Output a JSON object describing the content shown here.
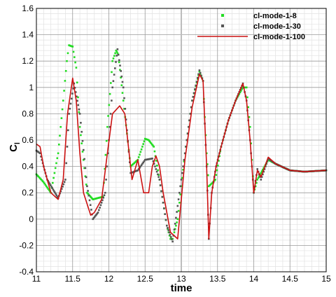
{
  "chart_data": {
    "type": "line",
    "title": "",
    "xlabel": "time",
    "ylabel": "C",
    "ylabel_subscript": "l",
    "xlim": [
      11,
      15
    ],
    "ylim": [
      -0.4,
      1.6
    ],
    "x_ticks": [
      11,
      11.5,
      12,
      12.5,
      13,
      13.5,
      14,
      14.5,
      15
    ],
    "x_tick_labels": [
      "11",
      "11.5",
      "12",
      "12.5",
      "13",
      "13.5",
      "14",
      "14.5",
      "15"
    ],
    "y_ticks": [
      -0.4,
      -0.2,
      0,
      0.2,
      0.4,
      0.6,
      0.8,
      1,
      1.2,
      1.4,
      1.6
    ],
    "y_tick_labels": [
      "-0.4",
      "-0.2",
      "0",
      "0.2",
      "0.4",
      "0.6",
      "0.8",
      "1",
      "1.2",
      "1.4",
      "1.6"
    ],
    "grid": true,
    "legend_position": "top-right",
    "series": [
      {
        "name": "cl-mode-1-8",
        "style": "markers",
        "color": "#22dd22",
        "x": [
          11.0,
          11.1,
          11.2,
          11.3,
          11.37,
          11.42,
          11.45,
          11.5,
          11.55,
          11.6,
          11.7,
          11.78,
          11.85,
          11.92,
          11.98,
          12.05,
          12.1,
          12.13,
          12.2,
          12.3,
          12.4,
          12.5,
          12.55,
          12.62,
          12.7,
          12.8,
          12.85,
          12.88,
          12.95,
          13.05,
          13.15,
          13.25,
          13.3,
          13.35,
          13.38,
          13.42,
          13.47,
          13.55,
          13.65,
          13.75,
          13.85,
          13.9,
          13.95,
          14.0,
          14.05,
          14.1,
          14.2,
          14.3,
          14.5,
          14.7,
          15.0
        ],
        "y": [
          0.34,
          0.28,
          0.2,
          0.5,
          0.9,
          1.2,
          1.32,
          1.31,
          1.15,
          0.7,
          0.2,
          0.15,
          0.16,
          0.17,
          0.7,
          1.2,
          1.28,
          1.25,
          0.9,
          0.4,
          0.45,
          0.61,
          0.6,
          0.55,
          0.3,
          -0.05,
          -0.15,
          -0.15,
          0.0,
          0.5,
          0.9,
          1.12,
          1.05,
          0.5,
          0.25,
          0.27,
          0.3,
          0.55,
          0.75,
          0.9,
          1.0,
          1.0,
          0.7,
          0.2,
          0.3,
          0.35,
          0.45,
          0.42,
          0.37,
          0.36,
          0.37
        ]
      },
      {
        "name": "cl-mode-1-30",
        "style": "markers",
        "color": "#555555",
        "x": [
          11.0,
          11.05,
          11.15,
          11.3,
          11.4,
          11.45,
          11.52,
          11.6,
          11.7,
          11.78,
          11.85,
          11.95,
          12.05,
          12.12,
          12.2,
          12.3,
          12.4,
          12.5,
          12.6,
          12.7,
          12.8,
          12.88,
          12.95,
          13.05,
          13.15,
          13.25,
          13.3,
          13.35,
          13.38,
          13.42,
          13.48,
          13.55,
          13.65,
          13.75,
          13.85,
          13.9,
          13.95,
          14.0,
          14.05,
          14.1,
          14.2,
          14.3,
          14.5,
          14.7,
          15.0
        ],
        "y": [
          0.52,
          0.5,
          0.3,
          0.16,
          0.3,
          0.8,
          1.03,
          0.8,
          0.25,
          0.0,
          0.05,
          0.2,
          1.0,
          1.29,
          1.0,
          0.35,
          0.37,
          0.45,
          0.46,
          0.3,
          -0.05,
          -0.17,
          0.1,
          0.5,
          0.9,
          1.13,
          1.05,
          0.4,
          -0.15,
          0.2,
          0.4,
          0.55,
          0.75,
          0.9,
          1.03,
          0.9,
          0.6,
          0.2,
          0.38,
          0.3,
          0.46,
          0.42,
          0.37,
          0.36,
          0.37
        ]
      },
      {
        "name": "cl-mode-1-100",
        "style": "line",
        "color": "#cc1111",
        "x": [
          11.0,
          11.05,
          11.1,
          11.2,
          11.3,
          11.37,
          11.43,
          11.5,
          11.55,
          11.6,
          11.65,
          11.75,
          11.8,
          11.9,
          11.98,
          12.05,
          12.15,
          12.22,
          12.28,
          12.32,
          12.4,
          12.48,
          12.55,
          12.6,
          12.65,
          12.7,
          12.75,
          12.85,
          12.95,
          13.05,
          13.15,
          13.25,
          13.3,
          13.35,
          13.38,
          13.42,
          13.48,
          13.55,
          13.65,
          13.75,
          13.85,
          13.9,
          13.95,
          14.0,
          14.05,
          14.1,
          14.2,
          14.3,
          14.5,
          14.7,
          15.0
        ],
        "y": [
          0.57,
          0.55,
          0.4,
          0.2,
          0.15,
          0.3,
          0.8,
          1.07,
          0.9,
          0.5,
          0.2,
          0.03,
          0.05,
          0.15,
          0.5,
          0.8,
          0.86,
          0.8,
          0.5,
          0.3,
          0.45,
          0.2,
          0.2,
          0.4,
          0.48,
          0.4,
          0.2,
          -0.1,
          -0.15,
          0.45,
          0.85,
          1.1,
          1.05,
          0.4,
          -0.15,
          0.2,
          0.4,
          0.55,
          0.75,
          0.9,
          1.03,
          0.9,
          0.6,
          0.2,
          0.37,
          0.32,
          0.47,
          0.42,
          0.37,
          0.36,
          0.37
        ]
      }
    ]
  }
}
